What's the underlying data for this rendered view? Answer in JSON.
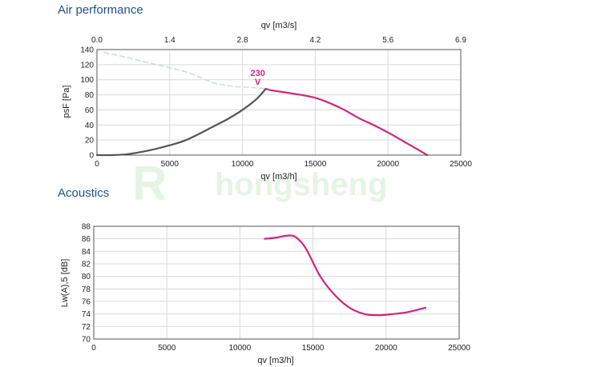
{
  "watermark": {
    "logo": "R",
    "text": "hongsheng"
  },
  "chart_data": [
    {
      "type": "line",
      "section_title": "Air performance",
      "title": "",
      "xlabel": "qv [m3/h]",
      "ylabel": "psF [Pa]",
      "x2label": "qv [m3/s]",
      "xlim": [
        0,
        25000
      ],
      "ylim": [
        0,
        140
      ],
      "x_ticks": [
        "0",
        "5000",
        "10000",
        "15000",
        "20000",
        "25000"
      ],
      "y_ticks": [
        "0",
        "20",
        "40",
        "60",
        "80",
        "100",
        "120",
        "140"
      ],
      "x2_ticks": [
        "0.0",
        "1.4",
        "2.8",
        "4.2",
        "5.6",
        "6.9"
      ],
      "grid": true,
      "marker": {
        "label": "230",
        "symbol": "V",
        "x": 11600,
        "y": 88
      },
      "series": [
        {
          "role": "dashed-upper",
          "color": "#c9d9ec",
          "x": [
            500,
            1500,
            3000,
            5000,
            6500,
            8000,
            9500,
            10500,
            11600
          ],
          "y": [
            136,
            132,
            125,
            116,
            108,
            96,
            91,
            90,
            88
          ]
        },
        {
          "role": "system-line",
          "color": "#555555",
          "x": [
            0,
            1000,
            2000,
            3000,
            4000,
            5000,
            6000,
            7000,
            8000,
            9000,
            10000,
            11000,
            11600
          ],
          "y": [
            0,
            0,
            1,
            4,
            8,
            13,
            19,
            28,
            38,
            48,
            60,
            75,
            88
          ]
        },
        {
          "role": "fan-curve",
          "color": "#d4237e",
          "x": [
            11600,
            12000,
            13000,
            14000,
            15000,
            16000,
            17000,
            18000,
            19000,
            20000,
            21000,
            22000,
            22700
          ],
          "y": [
            88,
            86,
            83,
            80,
            76,
            69,
            60,
            49,
            40,
            30,
            19,
            8,
            0
          ]
        }
      ]
    },
    {
      "type": "line",
      "section_title": "Acoustics",
      "title": "",
      "xlabel": "qv [m3/h]",
      "ylabel": "Lw(A),5 [dB]",
      "xlim": [
        0,
        25000
      ],
      "ylim": [
        70,
        88
      ],
      "x_ticks": [
        "0",
        "5000",
        "10000",
        "15000",
        "20000",
        "25000"
      ],
      "y_ticks": [
        "70",
        "72",
        "74",
        "76",
        "78",
        "80",
        "82",
        "84",
        "86",
        "88"
      ],
      "grid": true,
      "series": [
        {
          "role": "sound-power",
          "color": "#d4237e",
          "x": [
            11700,
            12500,
            13200,
            13800,
            14500,
            15500,
            16500,
            17500,
            18500,
            19500,
            20500,
            21500,
            22700
          ],
          "y": [
            86,
            86.2,
            86.5,
            86.3,
            84.5,
            80,
            77,
            75,
            74,
            73.8,
            74,
            74.3,
            75
          ]
        }
      ]
    }
  ]
}
